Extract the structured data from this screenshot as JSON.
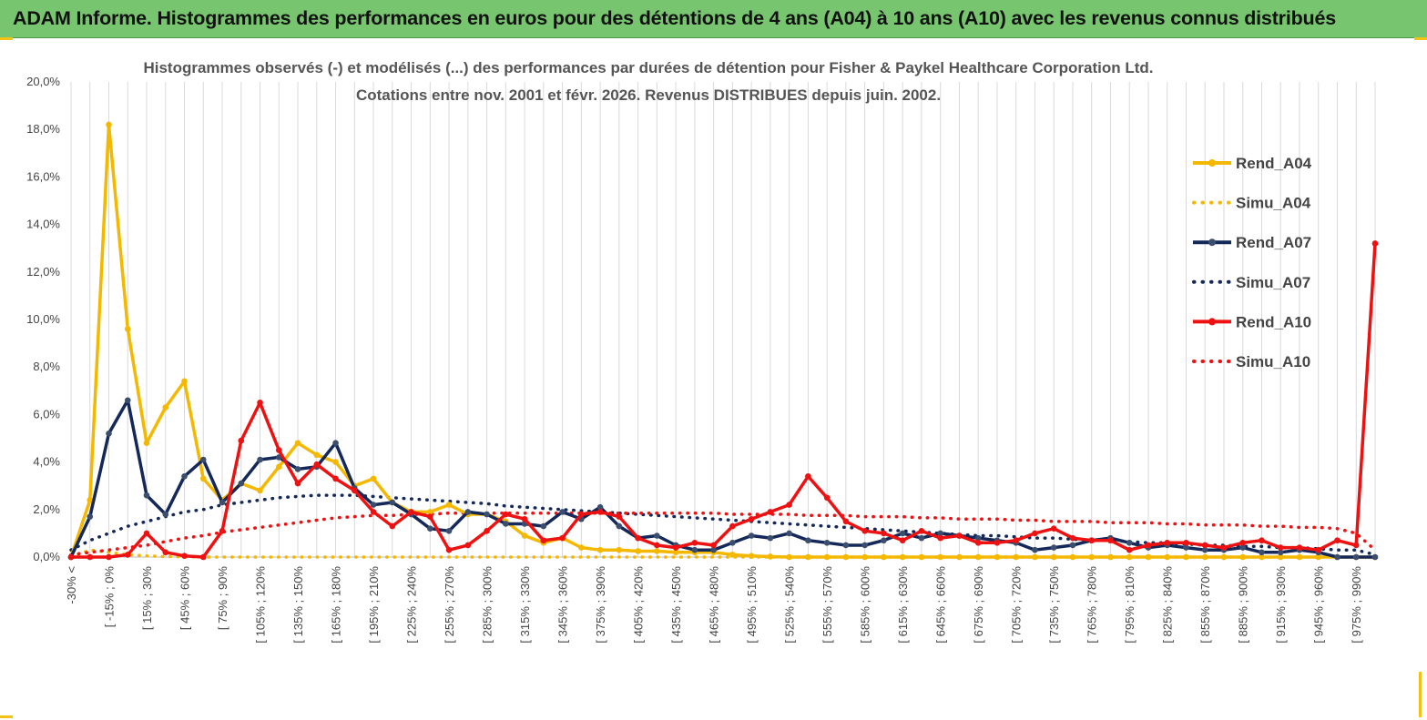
{
  "banner": {
    "title": "ADAM Informe. Histogrammes des performances en euros pour des détentions de 4 ans (A04) à 10 ans (A10) avec les revenus connus distribués"
  },
  "colors": {
    "banner_bg": "#78c56f",
    "accent": "#f2c314",
    "a04": "#f5b800",
    "a07": "#14285a",
    "a10": "#ee1111"
  },
  "chart_data": {
    "type": "line",
    "title_lines": [
      "Histogrammes observés (-) et modélisés (...) des performances par durées de détention pour Fisher & Paykel Healthcare Corporation Ltd.",
      "Cotations entre nov. 2001 et févr. 2026. Revenus DISTRIBUES depuis juin. 2002."
    ],
    "ylim": [
      0,
      20
    ],
    "y_ticks": [
      "0,0%",
      "2,0%",
      "4,0%",
      "6,0%",
      "8,0%",
      "10,0%",
      "12,0%",
      "14,0%",
      "16,0%",
      "18,0%",
      "20,0%"
    ],
    "x_labels": [
      "-30% <",
      "[ -15% ; 0%",
      "[ 15% ; 30%",
      "[ 45% ; 60%",
      "[ 75% ; 90%",
      "[ 105% ; 120%",
      "[ 135% ; 150%",
      "[ 165% ; 180%",
      "[ 195% ; 210%",
      "[ 225% ; 240%",
      "[ 255% ; 270%",
      "[ 285% ; 300%",
      "[ 315% ; 330%",
      "[ 345% ; 360%",
      "[ 375% ; 390%",
      "[ 405% ; 420%",
      "[ 435% ; 450%",
      "[ 465% ; 480%",
      "[ 495% ; 510%",
      "[ 525% ; 540%",
      "[ 555% ; 570%",
      "[ 585% ; 600%",
      "[ 615% ; 630%",
      "[ 645% ; 660%",
      "[ 675% ; 690%",
      "[ 705% ; 720%",
      "[ 735% ; 750%",
      "[ 765% ; 780%",
      "[ 795% ; 810%",
      "[ 825% ; 840%",
      "[ 855% ; 870%",
      "[ 885% ; 900%",
      "[ 915% ; 930%",
      "[ 945% ; 960%",
      "[ 975% ; 990%"
    ],
    "n_points": 70,
    "series": [
      {
        "name": "Rend_A04",
        "style": "solid",
        "color": "#f5b800",
        "values": [
          0,
          2.4,
          18.2,
          9.6,
          4.8,
          6.3,
          7.4,
          3.3,
          2.4,
          3.1,
          2.8,
          3.8,
          4.8,
          4.3,
          4.0,
          3.0,
          3.3,
          2.3,
          1.9,
          1.9,
          2.2,
          1.8,
          1.8,
          1.5,
          0.9,
          0.6,
          0.8,
          0.4,
          0.3,
          0.3,
          0.25,
          0.25,
          0.2,
          0.2,
          0.2,
          0.1,
          0.05,
          0.02,
          0,
          0,
          0,
          0,
          0,
          0,
          0,
          0,
          0,
          0,
          0,
          0,
          0,
          0,
          0,
          0,
          0,
          0,
          0,
          0,
          0,
          0,
          0,
          0,
          0,
          0,
          0,
          0,
          0,
          0,
          0,
          0
        ]
      },
      {
        "name": "Simu_A04",
        "style": "dotted",
        "color": "#f5b800",
        "values": [
          0,
          0.3,
          0.2,
          0.1,
          0.05,
          0.02,
          0.01,
          0,
          0,
          0,
          0,
          0,
          0,
          0,
          0,
          0,
          0,
          0,
          0,
          0,
          0,
          0,
          0,
          0,
          0,
          0,
          0,
          0,
          0,
          0,
          0,
          0,
          0,
          0,
          0,
          0,
          0,
          0,
          0,
          0,
          0,
          0,
          0,
          0,
          0,
          0,
          0,
          0,
          0,
          0,
          0,
          0,
          0,
          0,
          0,
          0,
          0,
          0,
          0,
          0,
          0,
          0,
          0,
          0,
          0,
          0,
          0,
          0,
          0,
          0
        ]
      },
      {
        "name": "Rend_A07",
        "style": "solid",
        "color": "#14285a",
        "values": [
          0,
          1.7,
          5.2,
          6.6,
          2.6,
          1.8,
          3.4,
          4.1,
          2.3,
          3.1,
          4.1,
          4.2,
          3.7,
          3.8,
          4.8,
          2.9,
          2.2,
          2.3,
          1.8,
          1.2,
          1.1,
          1.9,
          1.8,
          1.4,
          1.4,
          1.3,
          1.9,
          1.6,
          2.1,
          1.3,
          0.8,
          0.9,
          0.5,
          0.3,
          0.3,
          0.6,
          0.9,
          0.8,
          1.0,
          0.7,
          0.6,
          0.5,
          0.5,
          0.7,
          1.0,
          0.8,
          1.0,
          0.9,
          0.8,
          0.7,
          0.6,
          0.3,
          0.4,
          0.5,
          0.7,
          0.8,
          0.6,
          0.4,
          0.5,
          0.4,
          0.3,
          0.3,
          0.4,
          0.2,
          0.2,
          0.3,
          0.2,
          0,
          0,
          0
        ]
      },
      {
        "name": "Simu_A07",
        "style": "dotted",
        "color": "#14285a",
        "values": [
          0.3,
          0.7,
          1.0,
          1.3,
          1.5,
          1.7,
          1.9,
          2.0,
          2.2,
          2.3,
          2.4,
          2.5,
          2.55,
          2.6,
          2.6,
          2.6,
          2.55,
          2.5,
          2.45,
          2.4,
          2.35,
          2.3,
          2.25,
          2.15,
          2.1,
          2.05,
          2.0,
          1.95,
          1.9,
          1.85,
          1.8,
          1.75,
          1.7,
          1.65,
          1.6,
          1.55,
          1.5,
          1.45,
          1.4,
          1.35,
          1.3,
          1.25,
          1.2,
          1.15,
          1.1,
          1.05,
          1.0,
          0.95,
          0.9,
          0.9,
          0.85,
          0.8,
          0.8,
          0.75,
          0.7,
          0.7,
          0.65,
          0.6,
          0.6,
          0.55,
          0.5,
          0.5,
          0.45,
          0.45,
          0.4,
          0.4,
          0.35,
          0.3,
          0.3,
          0.1
        ]
      },
      {
        "name": "Rend_A10",
        "style": "solid",
        "color": "#ee1111",
        "values": [
          0,
          0,
          0,
          0.1,
          1.0,
          0.2,
          0.05,
          0,
          1.1,
          4.9,
          6.5,
          4.5,
          3.1,
          3.9,
          3.3,
          2.8,
          1.9,
          1.3,
          1.9,
          1.7,
          0.3,
          0.5,
          1.1,
          1.8,
          1.6,
          0.7,
          0.8,
          1.8,
          1.9,
          1.7,
          0.8,
          0.5,
          0.4,
          0.6,
          0.5,
          1.3,
          1.6,
          1.9,
          2.2,
          3.4,
          2.5,
          1.5,
          1.1,
          1.0,
          0.7,
          1.1,
          0.8,
          0.9,
          0.6,
          0.6,
          0.7,
          1.0,
          1.2,
          0.8,
          0.7,
          0.7,
          0.3,
          0.5,
          0.6,
          0.6,
          0.5,
          0.4,
          0.6,
          0.7,
          0.4,
          0.4,
          0.3,
          0.7,
          0.5,
          13.2
        ]
      },
      {
        "name": "Simu_A10",
        "style": "dotted",
        "color": "#ee1111",
        "values": [
          0.1,
          0.2,
          0.3,
          0.4,
          0.5,
          0.65,
          0.8,
          0.9,
          1.05,
          1.15,
          1.25,
          1.35,
          1.45,
          1.55,
          1.65,
          1.7,
          1.75,
          1.75,
          1.8,
          1.8,
          1.85,
          1.85,
          1.85,
          1.85,
          1.85,
          1.85,
          1.85,
          1.85,
          1.85,
          1.85,
          1.85,
          1.85,
          1.85,
          1.85,
          1.85,
          1.8,
          1.8,
          1.8,
          1.8,
          1.75,
          1.75,
          1.75,
          1.7,
          1.7,
          1.7,
          1.65,
          1.65,
          1.6,
          1.6,
          1.6,
          1.55,
          1.55,
          1.5,
          1.5,
          1.5,
          1.45,
          1.45,
          1.45,
          1.4,
          1.4,
          1.35,
          1.35,
          1.35,
          1.3,
          1.3,
          1.25,
          1.25,
          1.2,
          1.0,
          0.3
        ]
      }
    ]
  }
}
